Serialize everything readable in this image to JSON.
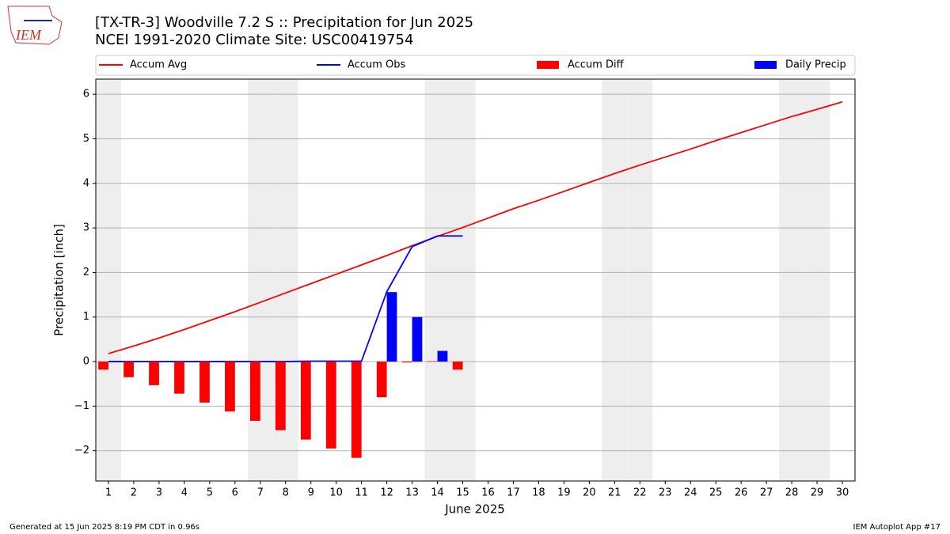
{
  "chart_data": {
    "type": "combo",
    "title": "[TX-TR-3] Woodville 7.2 S :: Precipitation for Jun 2025",
    "subtitle": "NCEI 1991-2020 Climate Site: USC00419754",
    "logo": "IEM",
    "xlabel": "June 2025",
    "ylabel": "Precipitation [inch]",
    "footer_left": "Generated at 15 Jun 2025 8:19 PM CDT in 0.96s",
    "footer_right": "IEM Autoplot App #17",
    "x": [
      1,
      2,
      3,
      4,
      5,
      6,
      7,
      8,
      9,
      10,
      11,
      12,
      13,
      14,
      15,
      16,
      17,
      18,
      19,
      20,
      21,
      22,
      23,
      24,
      25,
      26,
      27,
      28,
      29,
      30
    ],
    "xlim": [
      0.5,
      30.5
    ],
    "xticks": [
      1,
      2,
      3,
      4,
      5,
      6,
      7,
      8,
      9,
      10,
      11,
      12,
      13,
      14,
      15,
      16,
      17,
      18,
      19,
      20,
      21,
      22,
      23,
      24,
      25,
      26,
      27,
      28,
      29,
      30
    ],
    "ylim": [
      -2.68,
      6.34
    ],
    "yticks": [
      {
        "value": -2,
        "label": "−2"
      },
      {
        "value": -1,
        "label": "−1"
      },
      0,
      1,
      2,
      3,
      4,
      5,
      6
    ],
    "grid": true,
    "shaded_days": [
      1,
      7,
      8,
      14,
      15,
      21,
      22,
      28,
      29
    ],
    "shade_color": "#eeeeee",
    "legend": "top",
    "series": [
      {
        "name": "Accum Avg",
        "kind": "line",
        "color": "#ff0000",
        "values": [
          0.18,
          0.35,
          0.53,
          0.72,
          0.92,
          1.12,
          1.33,
          1.54,
          1.75,
          1.96,
          2.17,
          2.38,
          2.6,
          2.81,
          3.01,
          3.22,
          3.43,
          3.62,
          3.82,
          4.02,
          4.22,
          4.41,
          4.59,
          4.77,
          4.96,
          5.14,
          5.32,
          5.5,
          5.66,
          5.83
        ]
      },
      {
        "name": "Accum Obs",
        "kind": "line",
        "color": "#0000ff",
        "values": [
          0,
          0,
          0,
          0,
          0,
          0,
          0,
          0,
          0.01,
          0.01,
          0.01,
          1.57,
          2.58,
          2.82,
          2.82,
          null,
          null,
          null,
          null,
          null,
          null,
          null,
          null,
          null,
          null,
          null,
          null,
          null,
          null,
          null
        ]
      },
      {
        "name": "Accum Diff",
        "kind": "bar",
        "color": "#ff0000",
        "values": [
          -0.18,
          -0.35,
          -0.53,
          -0.72,
          -0.92,
          -1.12,
          -1.33,
          -1.54,
          -1.75,
          -1.95,
          -2.16,
          -0.8,
          -0.02,
          0.01,
          -0.18,
          null,
          null,
          null,
          null,
          null,
          null,
          null,
          null,
          null,
          null,
          null,
          null,
          null,
          null,
          null
        ]
      },
      {
        "name": "Daily Precip",
        "kind": "bar",
        "color": "#0000ff",
        "values": [
          0,
          0,
          0,
          0,
          0,
          0,
          0,
          0,
          0.01,
          0,
          0,
          1.56,
          1.0,
          0.24,
          0,
          null,
          null,
          null,
          null,
          null,
          null,
          null,
          null,
          null,
          null,
          null,
          null,
          null,
          null,
          null
        ]
      }
    ]
  }
}
